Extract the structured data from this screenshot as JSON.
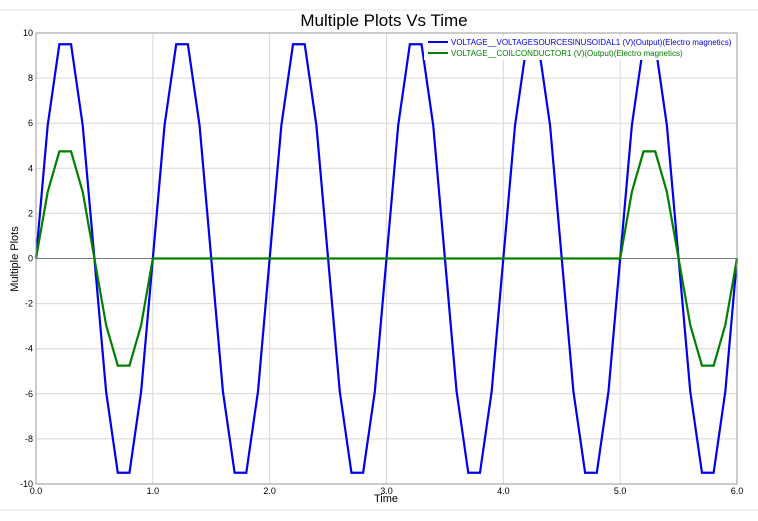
{
  "chart_data": {
    "type": "line",
    "title": "Multiple Plots Vs Time",
    "xlabel": "Time",
    "ylabel": "Multiple Plots",
    "xlim": [
      0,
      6
    ],
    "ylim": [
      -10,
      10
    ],
    "x_ticks": [
      "0.0",
      "1.0",
      "2.0",
      "3.0",
      "4.0",
      "5.0",
      "6.0"
    ],
    "x_tick_values": [
      0,
      1,
      2,
      3,
      4,
      5,
      6
    ],
    "y_ticks": [
      "10",
      "8",
      "6",
      "4",
      "2",
      "0",
      "-2",
      "-4",
      "-6",
      "-8",
      "-10"
    ],
    "y_tick_values": [
      10,
      8,
      6,
      4,
      2,
      0,
      -2,
      -4,
      -6,
      -8,
      -10
    ],
    "grid": true,
    "legend_position": "top-right",
    "series": [
      {
        "name": "VOLTAGE__VOLTAGESOURCESINUSOIDAL1 (V)(Output)(Electro magnetics)",
        "color": "#0000ee",
        "x": [
          0,
          0.1,
          0.2,
          0.3,
          0.4,
          0.5,
          0.6,
          0.7,
          0.8,
          0.9,
          1.0,
          1.1,
          1.2,
          1.3,
          1.4,
          1.5,
          1.6,
          1.7,
          1.8,
          1.9,
          2.0,
          2.1,
          2.2,
          2.3,
          2.4,
          2.5,
          2.6,
          2.7,
          2.8,
          2.9,
          3.0,
          3.1,
          3.2,
          3.3,
          3.4,
          3.5,
          3.6,
          3.7,
          3.8,
          3.9,
          4.0,
          4.1,
          4.2,
          4.3,
          4.4,
          4.5,
          4.6,
          4.7,
          4.8,
          4.9,
          5.0,
          5.1,
          5.2,
          5.3,
          5.4,
          5.5,
          5.6,
          5.7,
          5.8,
          5.9,
          6.0
        ],
        "y": [
          0,
          5.9,
          9.5,
          9.5,
          5.9,
          0,
          -5.9,
          -9.5,
          -9.5,
          -5.9,
          0,
          5.9,
          9.5,
          9.5,
          5.9,
          0,
          -5.9,
          -9.5,
          -9.5,
          -5.9,
          0,
          5.9,
          9.5,
          9.5,
          5.9,
          0,
          -5.9,
          -9.5,
          -9.5,
          -5.9,
          0,
          5.9,
          9.5,
          9.5,
          5.9,
          0,
          -5.9,
          -9.5,
          -9.5,
          -5.9,
          0,
          5.9,
          9.5,
          9.5,
          5.9,
          0,
          -5.9,
          -9.5,
          -9.5,
          -5.9,
          0,
          5.9,
          9.5,
          9.5,
          5.9,
          0,
          -5.9,
          -9.5,
          -9.5,
          -5.9,
          0
        ]
      },
      {
        "name": "VOLTAGE__COILCONDUCTOR1 (V)(Output)(Electro magnetics)",
        "color": "#008000",
        "x": [
          0,
          0.1,
          0.2,
          0.3,
          0.4,
          0.5,
          0.6,
          0.7,
          0.8,
          0.9,
          1.0,
          5.0,
          5.1,
          5.2,
          5.3,
          5.4,
          5.5,
          5.6,
          5.7,
          5.8,
          5.9,
          6.0
        ],
        "y": [
          0,
          2.95,
          4.75,
          4.75,
          2.95,
          0,
          -2.95,
          -4.75,
          -4.75,
          -2.95,
          0,
          0,
          2.95,
          4.75,
          4.75,
          2.95,
          0,
          -2.95,
          -4.75,
          -4.75,
          -2.95,
          0
        ]
      }
    ]
  }
}
